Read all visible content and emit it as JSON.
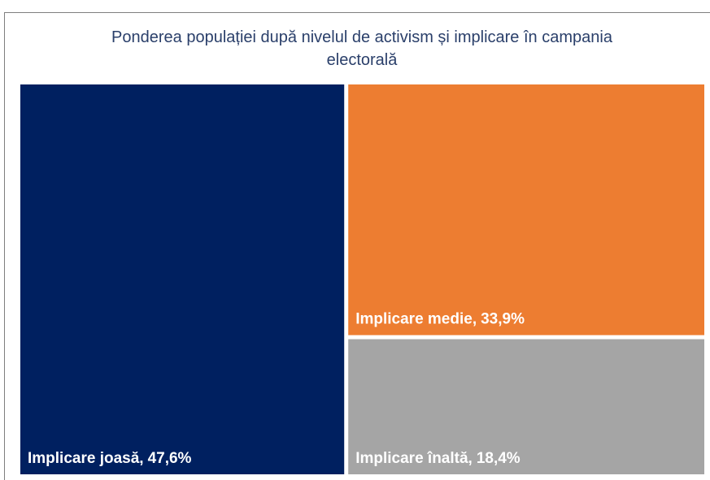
{
  "chart_data": {
    "type": "treemap",
    "title": "Ponderea populației după nivelul de activism și implicare în campania electorală",
    "categories": [
      "Implicare joasă,",
      "Implicare medie,",
      "Implicare înaltă,"
    ],
    "values": [
      47.6,
      33.9,
      18.4
    ],
    "value_labels": [
      "47,6%",
      "33,9%",
      "18,4%"
    ],
    "colors": [
      "#002060",
      "#ED7D31",
      "#A5A5A5"
    ]
  }
}
